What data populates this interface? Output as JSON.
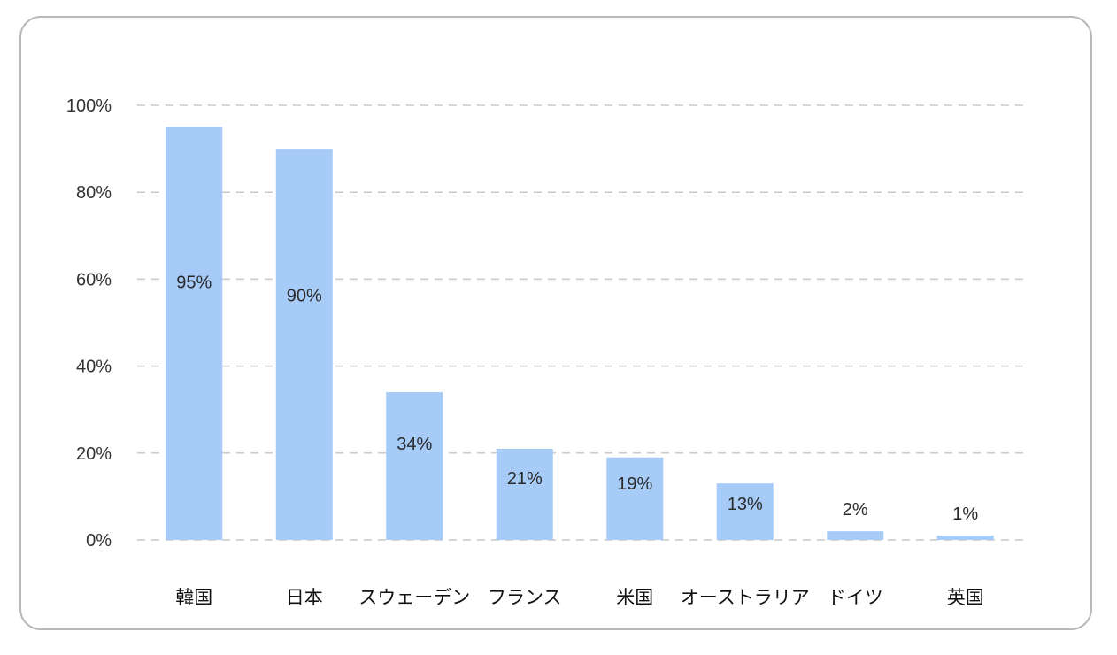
{
  "chart_data": {
    "type": "bar",
    "title": "",
    "xlabel": "",
    "ylabel": "",
    "categories": [
      "韓国",
      "日本",
      "スウェーデン",
      "フランス",
      "米国",
      "オーストラリア",
      "ドイツ",
      "英国"
    ],
    "values": [
      95,
      90,
      34,
      21,
      19,
      13,
      2,
      1
    ],
    "data_labels": [
      "95%",
      "90%",
      "34%",
      "21%",
      "19%",
      "13%",
      "2%",
      "1%"
    ],
    "y_ticks": [
      "0%",
      "20%",
      "40%",
      "60%",
      "80%",
      "100%"
    ],
    "ylim": [
      0,
      100
    ],
    "grid": true,
    "legend": "none",
    "bar_color": "#a6cbf7",
    "grid_color": "#c8c8c8"
  }
}
